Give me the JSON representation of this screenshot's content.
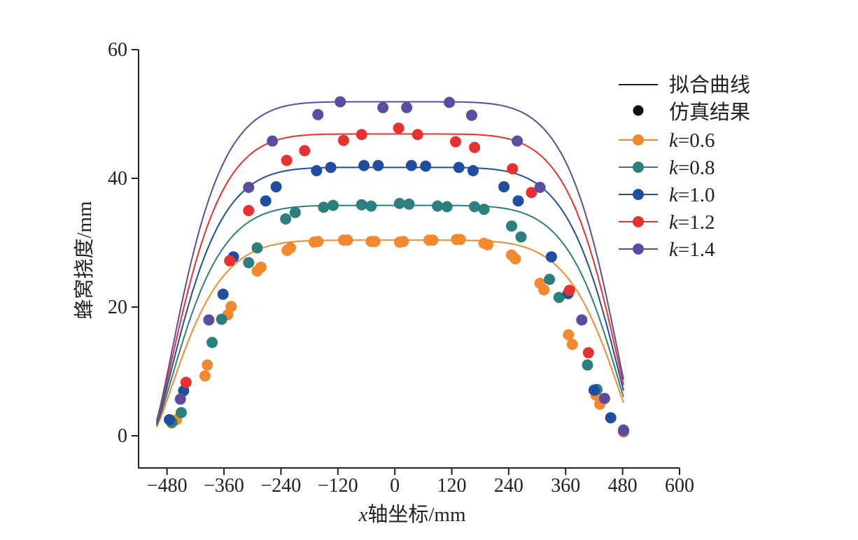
{
  "chart_data": {
    "type": "line",
    "xlabel_var": "x",
    "xlabel_rest": "轴坐标/mm",
    "ylabel": "蜂窝挠度/mm",
    "xlim": [
      -540,
      600
    ],
    "ylim": [
      -5,
      60
    ],
    "x_ticks": [
      -480,
      -360,
      -240,
      -120,
      0,
      120,
      240,
      360,
      480,
      600
    ],
    "x_tick_labels": [
      "−480",
      "−360",
      "−240",
      "−120",
      "0",
      "120",
      "240",
      "360",
      "480",
      "600"
    ],
    "y_ticks": [
      0,
      20,
      40,
      60
    ],
    "y_tick_labels": [
      "0",
      "20",
      "40",
      "60"
    ],
    "grid": false,
    "legend_position": "top-right",
    "legend": {
      "fit_label": "拟合曲线",
      "sim_label": "仿真结果",
      "fit_color": "#222222",
      "sim_color": "#111111"
    },
    "series": [
      {
        "name": "k=0.6",
        "k_symbol": "k",
        "k_value": "=0.6",
        "color": "#F4882F",
        "plateau": 30.4,
        "points": [
          [
            -470,
            2
          ],
          [
            -460,
            2.5
          ],
          [
            -400,
            9.3
          ],
          [
            -395,
            11
          ],
          [
            -352,
            18.8
          ],
          [
            -345,
            20.1
          ],
          [
            -290,
            25.6
          ],
          [
            -282,
            26.2
          ],
          [
            -227,
            28.8
          ],
          [
            -220,
            29.2
          ],
          [
            -170,
            30.1
          ],
          [
            -162,
            30.2
          ],
          [
            -108,
            30.4
          ],
          [
            -100,
            30.4
          ],
          [
            -50,
            30.2
          ],
          [
            -42,
            30.2
          ],
          [
            10,
            30.1
          ],
          [
            18,
            30.2
          ],
          [
            72,
            30.4
          ],
          [
            80,
            30.4
          ],
          [
            130,
            30.5
          ],
          [
            138,
            30.5
          ],
          [
            188,
            29.9
          ],
          [
            196,
            29.7
          ],
          [
            246,
            28.1
          ],
          [
            254,
            27.5
          ],
          [
            306,
            23.7
          ],
          [
            314,
            22.7
          ],
          [
            366,
            15.7
          ],
          [
            374,
            14.2
          ],
          [
            424,
            6.3
          ],
          [
            432,
            4.9
          ],
          [
            482,
            0.6
          ]
        ]
      },
      {
        "name": "k=0.8",
        "k_symbol": "k",
        "k_value": "=0.8",
        "color": "#2B7F7C",
        "plateau": 35.8,
        "points": [
          [
            -470,
            2.1
          ],
          [
            -450,
            3.6
          ],
          [
            -385,
            14.5
          ],
          [
            -365,
            18.1
          ],
          [
            -308,
            26.9
          ],
          [
            -290,
            29.2
          ],
          [
            -230,
            33.7
          ],
          [
            -210,
            34.7
          ],
          [
            -150,
            35.5
          ],
          [
            -130,
            35.8
          ],
          [
            -70,
            35.9
          ],
          [
            -50,
            35.7
          ],
          [
            10,
            36.1
          ],
          [
            30,
            36
          ],
          [
            90,
            35.7
          ],
          [
            110,
            35.6
          ],
          [
            168,
            35.6
          ],
          [
            188,
            35.2
          ],
          [
            246,
            32.6
          ],
          [
            266,
            30.9
          ],
          [
            326,
            24.3
          ],
          [
            346,
            21.5
          ],
          [
            406,
            11
          ],
          [
            426,
            7.2
          ],
          [
            482,
            0.9
          ]
        ]
      },
      {
        "name": "k=1.0",
        "k_symbol": "k",
        "k_value": "=1.0",
        "color": "#1F4E9E",
        "plateau": 41.7,
        "points": [
          [
            -475,
            2.5
          ],
          [
            -445,
            7
          ],
          [
            -362,
            22
          ],
          [
            -340,
            27.8
          ],
          [
            -272,
            36.5
          ],
          [
            -250,
            38.7
          ],
          [
            -165,
            41.2
          ],
          [
            -135,
            41.7
          ],
          [
            -65,
            42
          ],
          [
            -35,
            42
          ],
          [
            35,
            42
          ],
          [
            65,
            41.9
          ],
          [
            135,
            41.7
          ],
          [
            165,
            41.2
          ],
          [
            230,
            38.7
          ],
          [
            260,
            36.5
          ],
          [
            330,
            27.8
          ],
          [
            365,
            22.1
          ],
          [
            420,
            7.1
          ],
          [
            455,
            2.8
          ],
          [
            482,
            0.8
          ]
        ]
      },
      {
        "name": "k=1.2",
        "k_symbol": "k",
        "k_value": "=1.2",
        "color": "#E8302E",
        "plateau": 46.9,
        "points": [
          [
            -440,
            8.3
          ],
          [
            -348,
            27.2
          ],
          [
            -308,
            35
          ],
          [
            -228,
            42.8
          ],
          [
            -190,
            44.3
          ],
          [
            -108,
            45.9
          ],
          [
            -70,
            46.8
          ],
          [
            8,
            47.8
          ],
          [
            48,
            46.8
          ],
          [
            128,
            45.7
          ],
          [
            168,
            44.8
          ],
          [
            248,
            41.5
          ],
          [
            288,
            37.8
          ],
          [
            368,
            22.6
          ],
          [
            408,
            12.9
          ]
        ]
      },
      {
        "name": "k=1.4",
        "k_symbol": "k",
        "k_value": "=1.4",
        "color": "#5B4BA1",
        "plateau": 51.9,
        "points": [
          [
            -452,
            5.7
          ],
          [
            -392,
            18
          ],
          [
            -308,
            38.6
          ],
          [
            -258,
            45.8
          ],
          [
            -162,
            49.9
          ],
          [
            -115,
            51.9
          ],
          [
            -25,
            51
          ],
          [
            25,
            51
          ],
          [
            115,
            51.8
          ],
          [
            162,
            49.8
          ],
          [
            258,
            45.8
          ],
          [
            306,
            38.6
          ],
          [
            394,
            18
          ],
          [
            442,
            5.8
          ],
          [
            482,
            0.8
          ]
        ]
      }
    ]
  }
}
